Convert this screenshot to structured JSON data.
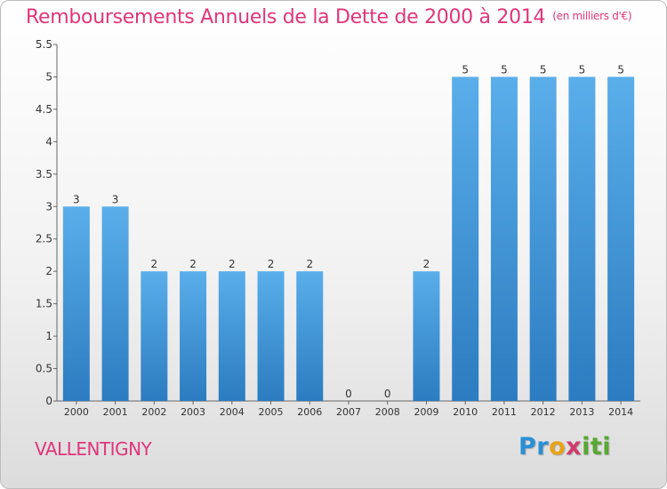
{
  "chart_data": {
    "type": "bar",
    "title": "Remboursements Annuels de la Dette de 2000 à 2014",
    "unit_note": "(en milliers d'€)",
    "categories": [
      "2000",
      "2001",
      "2002",
      "2003",
      "2004",
      "2005",
      "2006",
      "2007",
      "2008",
      "2009",
      "2010",
      "2011",
      "2012",
      "2013",
      "2014"
    ],
    "values": [
      3,
      3,
      2,
      2,
      2,
      2,
      2,
      0,
      0,
      2,
      5,
      5,
      5,
      5,
      5
    ],
    "ylim": [
      0,
      5.5
    ],
    "yticks": [
      "0",
      "0.5",
      "1",
      "1.5",
      "2",
      "2.5",
      "3",
      "3.5",
      "4",
      "4.5",
      "5",
      "5.5"
    ],
    "ytick_values": [
      0,
      0.5,
      1,
      1.5,
      2,
      2.5,
      3,
      3.5,
      4,
      4.5,
      5,
      5.5
    ],
    "grid": false,
    "bar_color": "#4a9fe0"
  },
  "footer": {
    "commune": "VALLENTIGNY",
    "logo_text": "Proxiti"
  }
}
